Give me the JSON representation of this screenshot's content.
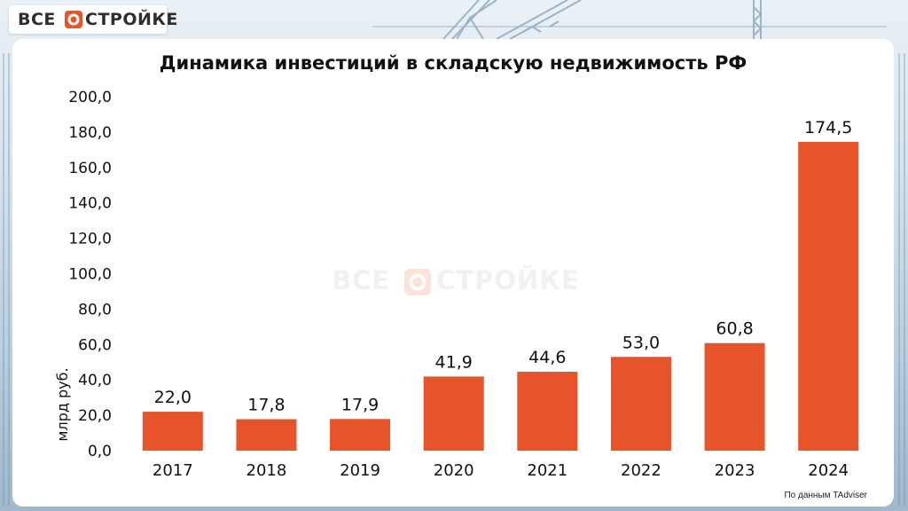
{
  "brand": {
    "logo_left": "ВСЕ",
    "logo_right": "СТРОЙКЕ",
    "accent": "#e8542a"
  },
  "source_note": "По данным TAdviser",
  "chart_data": {
    "type": "bar",
    "title": "Динамика инвестиций в складскую недвижимость РФ",
    "ylabel": "млрд руб.",
    "xlabel": "",
    "categories": [
      "2017",
      "2018",
      "2019",
      "2020",
      "2021",
      "2022",
      "2023",
      "2024"
    ],
    "values": [
      22.0,
      17.8,
      17.9,
      41.9,
      44.6,
      53.0,
      60.8,
      174.5
    ],
    "value_labels": [
      "22,0",
      "17,8",
      "17,9",
      "41,9",
      "44,6",
      "53,0",
      "60,8",
      "174,5"
    ],
    "y_ticks": [
      "0,0",
      "20,0",
      "40,0",
      "60,0",
      "80,0",
      "100,0",
      "120,0",
      "140,0",
      "160,0",
      "180,0",
      "200,0"
    ],
    "ylim": [
      0,
      200
    ],
    "bar_color": "#e8542a",
    "grid": false,
    "legend": "none"
  }
}
